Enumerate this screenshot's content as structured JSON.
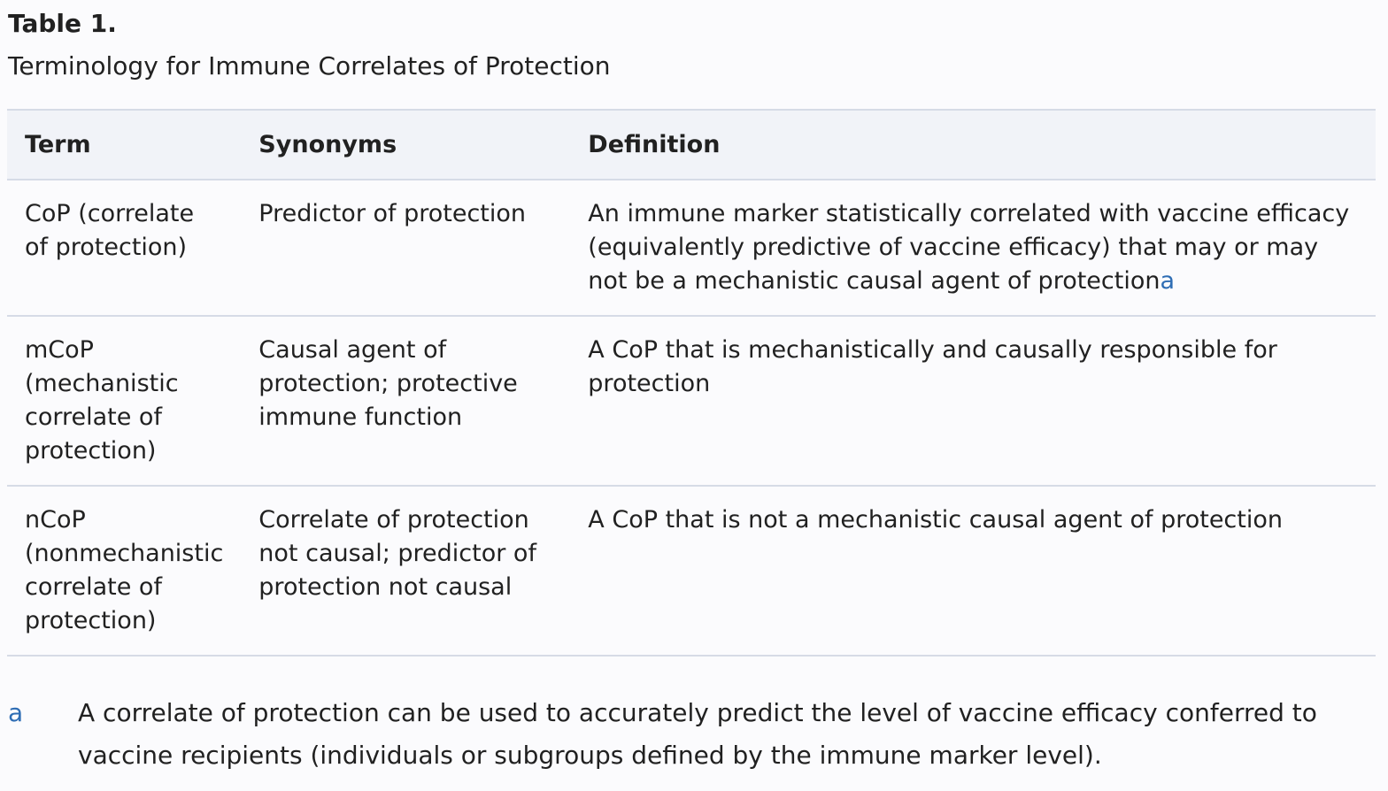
{
  "table": {
    "title": "Table 1.",
    "caption": "Terminology for Immune Correlates of Protection",
    "headers": [
      "Term",
      "Synonyms",
      "Definition"
    ],
    "rows": [
      {
        "term": "CoP (correlate of protection)",
        "synonyms": "Predictor of protection",
        "definition": "An immune marker statistically correlated with vaccine efficacy (equivalently predictive of vaccine efficacy) that may or may not be a mechanistic causal agent of protection",
        "footnote_ref": "a"
      },
      {
        "term": "mCoP (mechanistic correlate of protection)",
        "synonyms": "Causal agent of protection; protective immune function",
        "definition": "A CoP that is mechanistically and causally responsible for protection"
      },
      {
        "term": "nCoP (nonmechanistic correlate of protection)",
        "synonyms": "Correlate of protection not causal; predictor of protection not causal",
        "definition": "A CoP that is not a mechanistic causal agent of protection"
      }
    ]
  },
  "footnote": {
    "label": "a",
    "text": "A correlate of protection can be used to accurately predict the level of vaccine efficacy conferred to vaccine recipients (individuals or subgroups defined by the immune marker level)."
  },
  "colors": {
    "link": "#2e6db4",
    "header_bg": "#f1f3f8",
    "rule": "#d6dbe6"
  }
}
